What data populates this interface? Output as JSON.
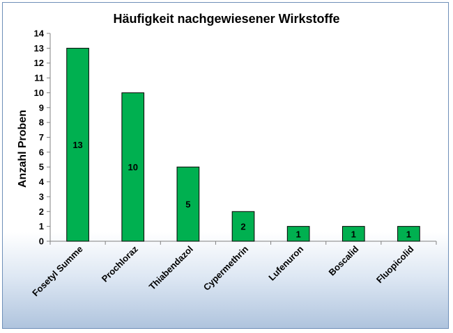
{
  "chart_data": {
    "type": "bar",
    "title": "Häufigkeit nachgewiesener Wirkstoffe",
    "xlabel": "",
    "ylabel": "Anzahl Proben",
    "categories": [
      "Fosetyl Summe",
      "Prochloraz",
      "Thiabendazol",
      "Cypermethrin",
      "Lufenuron",
      "Boscalid",
      "Fluopicolid"
    ],
    "values": [
      13,
      10,
      5,
      2,
      1,
      1,
      1
    ],
    "ylim": [
      0,
      14
    ],
    "yticks": [
      "0",
      "1",
      "2",
      "3",
      "4",
      "5",
      "6",
      "7",
      "8",
      "9",
      "10",
      "11",
      "12",
      "13",
      "14"
    ],
    "data_labels": [
      "13",
      "10",
      "5",
      "2",
      "1",
      "1",
      "1"
    ],
    "bar_color": "#00b050",
    "grid": false,
    "legend": "none"
  }
}
